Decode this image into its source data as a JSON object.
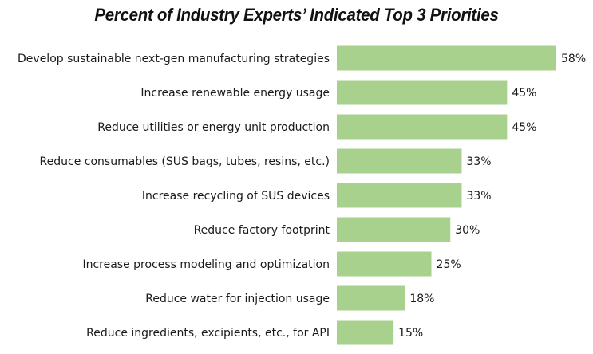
{
  "chart_data": {
    "type": "bar",
    "orientation": "horizontal",
    "title": "Percent of Industry Experts’ Indicated Top 3 Priorities",
    "xlabel": "",
    "ylabel": "",
    "categories": [
      "Develop sustainable next-gen manufacturing strategies",
      "Increase renewable energy usage",
      "Reduce utilities or energy unit production",
      "Reduce consumables (SUS bags, tubes, resins, etc.)",
      "Increase recycling of SUS devices",
      "Reduce factory footprint",
      "Increase process modeling and optimization",
      "Reduce water for injection usage",
      "Reduce ingredients, excipients, etc., for API"
    ],
    "values": [
      58,
      45,
      45,
      33,
      33,
      30,
      25,
      18,
      15
    ],
    "value_labels": [
      "58%",
      "45%",
      "45%",
      "33%",
      "33%",
      "30%",
      "25%",
      "18%",
      "15%"
    ],
    "unit": "%",
    "xlim": [
      0,
      58
    ],
    "grid": false,
    "legend": "none",
    "bar_color": "#a9d18e"
  }
}
